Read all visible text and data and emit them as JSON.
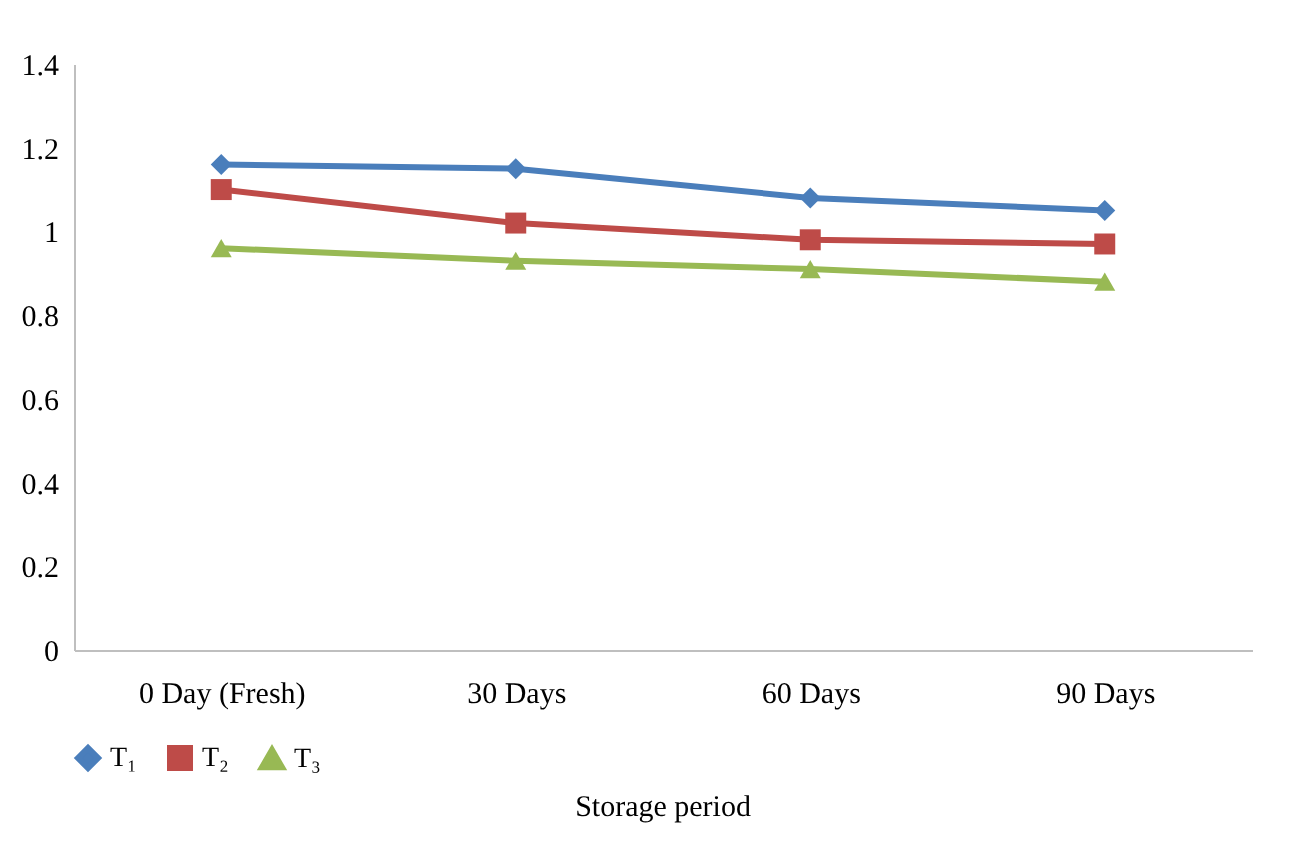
{
  "chart_data": {
    "type": "line",
    "xlabel": "Storage period",
    "categories": [
      "0 Day (Fresh)",
      "30  Days",
      "60  Days",
      "90  Days"
    ],
    "series": [
      {
        "name": "T₁",
        "color": "#4a7ebb",
        "marker": "diamond",
        "values": [
          1.16,
          1.15,
          1.08,
          1.05
        ]
      },
      {
        "name": "T₂",
        "color": "#be4b48",
        "marker": "square",
        "values": [
          1.1,
          1.02,
          0.98,
          0.97
        ]
      },
      {
        "name": "T₃",
        "color": "#98b954",
        "marker": "triangle",
        "values": [
          0.96,
          0.93,
          0.91,
          0.88
        ]
      }
    ],
    "ylim": [
      0,
      1.4
    ],
    "yticks": [
      0,
      0.2,
      0.4,
      0.6,
      0.8,
      1,
      1.2,
      1.4
    ],
    "grid": false,
    "legend": "bottom"
  }
}
